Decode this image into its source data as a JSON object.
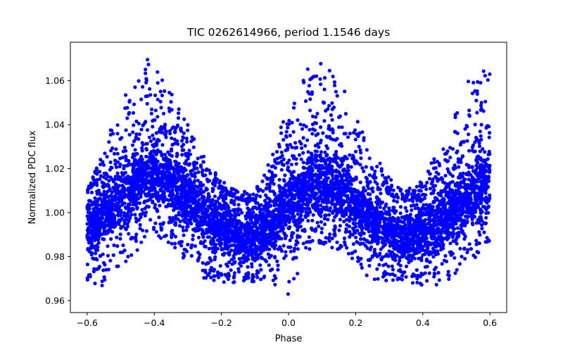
{
  "chart_data": {
    "type": "scatter",
    "title": "TIC 0262614966, period 1.1546 days",
    "xlabel": "Phase",
    "ylabel": "Normalized PDC flux",
    "xlim": [
      -0.65,
      0.65
    ],
    "ylim": [
      0.9545,
      1.0775
    ],
    "xticks": [
      -0.6,
      -0.4,
      -0.2,
      0.0,
      0.2,
      0.4,
      0.6
    ],
    "xtick_labels": [
      "−0.6",
      "−0.4",
      "−0.2",
      "0.0",
      "0.2",
      "0.4",
      "0.6"
    ],
    "yticks": [
      0.96,
      0.98,
      1.0,
      1.02,
      1.04,
      1.06
    ],
    "ytick_labels": [
      "0.96",
      "0.98",
      "1.00",
      "1.02",
      "1.04",
      "1.06"
    ],
    "grid": false,
    "marker_color": "#0000ff",
    "series": [
      {
        "x": [
          -0.6,
          -0.55,
          -0.5,
          -0.45,
          -0.42,
          -0.4,
          -0.35,
          -0.3,
          -0.25,
          -0.2,
          -0.15,
          -0.12,
          -0.1,
          -0.05,
          0.0,
          0.05,
          0.08,
          0.1,
          0.15,
          0.2,
          0.25,
          0.3,
          0.35,
          0.4,
          0.45,
          0.5,
          0.55,
          0.58,
          0.6
        ],
        "y": [
          1.0,
          1.006,
          1.012,
          1.018,
          1.02,
          1.02,
          1.017,
          1.011,
          1.004,
          0.998,
          0.994,
          0.993,
          0.994,
          0.999,
          1.006,
          1.012,
          1.014,
          1.014,
          1.011,
          1.005,
          0.999,
          0.994,
          0.992,
          0.995,
          1.001,
          1.008,
          1.014,
          1.017,
          1.017
        ],
        "y_low": [
          0.972,
          0.976,
          0.982,
          0.99,
          0.994,
          0.995,
          0.991,
          0.984,
          0.977,
          0.972,
          0.971,
          0.971,
          0.971,
          0.975,
          0.982,
          0.989,
          0.992,
          0.992,
          0.988,
          0.981,
          0.975,
          0.972,
          0.971,
          0.972,
          0.975,
          0.98,
          0.985,
          0.988,
          0.989
        ],
        "y_high": [
          1.01,
          1.016,
          1.024,
          1.033,
          1.037,
          1.038,
          1.034,
          1.025,
          1.016,
          1.01,
          1.006,
          1.005,
          1.006,
          1.013,
          1.023,
          1.031,
          1.035,
          1.036,
          1.031,
          1.023,
          1.015,
          1.008,
          1.005,
          1.008,
          1.014,
          1.022,
          1.03,
          1.034,
          1.035
        ],
        "flare_peak": [
          1.01,
          1.03,
          1.05,
          1.064,
          1.071,
          1.069,
          1.055,
          1.04,
          1.025,
          1.015,
          1.01,
          1.01,
          1.011,
          1.025,
          1.05,
          1.066,
          1.071,
          1.073,
          1.062,
          1.045,
          1.028,
          1.016,
          1.01,
          1.015,
          1.03,
          1.05,
          1.064,
          1.07,
          1.072
        ],
        "dip_low": [
          0.968,
          0.966,
          0.972,
          0.982,
          0.988,
          0.99,
          0.985,
          0.976,
          0.969,
          0.968,
          0.968,
          0.969,
          0.968,
          0.968,
          0.961,
          0.98,
          0.985,
          0.986,
          0.982,
          0.976,
          0.968,
          0.969,
          0.968,
          0.967,
          0.966,
          0.972,
          0.978,
          0.983,
          0.984
        ]
      }
    ]
  }
}
